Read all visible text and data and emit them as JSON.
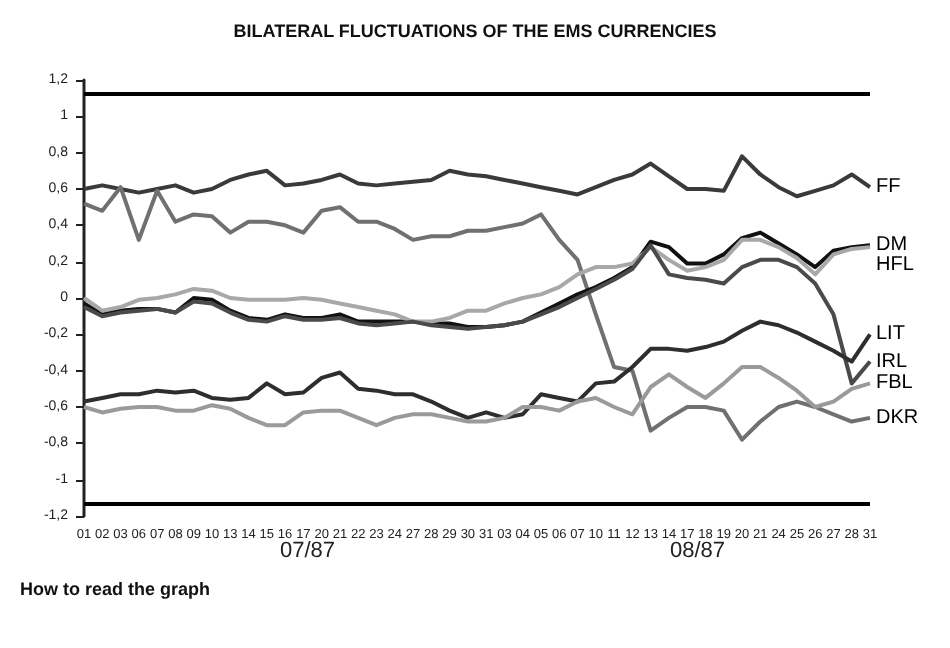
{
  "chart_data": {
    "type": "line",
    "title": "BILATERAL FLUCTUATIONS OF THE EMS CURRENCIES",
    "categories": [
      "01",
      "02",
      "03",
      "06",
      "07",
      "08",
      "09",
      "10",
      "13",
      "14",
      "15",
      "16",
      "17",
      "20",
      "21",
      "22",
      "23",
      "24",
      "27",
      "28",
      "29",
      "30",
      "31",
      "03",
      "04",
      "05",
      "06",
      "07",
      "10",
      "11",
      "12",
      "13",
      "14",
      "17",
      "18",
      "19",
      "20",
      "21",
      "24",
      "25",
      "26",
      "27",
      "28",
      "31"
    ],
    "series": [
      {
        "name": "FF",
        "color": "#3a3a3a",
        "values": [
          0.6,
          0.62,
          0.6,
          0.58,
          0.6,
          0.62,
          0.58,
          0.6,
          0.65,
          0.68,
          0.7,
          0.62,
          0.63,
          0.65,
          0.68,
          0.63,
          0.62,
          0.63,
          0.64,
          0.65,
          0.7,
          0.68,
          0.67,
          0.65,
          0.63,
          0.61,
          0.59,
          0.57,
          0.61,
          0.65,
          0.68,
          0.74,
          0.67,
          0.6,
          0.6,
          0.59,
          0.78,
          0.68,
          0.61,
          0.56,
          0.59,
          0.62,
          0.68,
          0.61
        ]
      },
      {
        "name": "DKR",
        "color": "#707070",
        "values": [
          0.52,
          0.48,
          0.61,
          0.32,
          0.59,
          0.42,
          0.46,
          0.45,
          0.36,
          0.42,
          0.42,
          0.4,
          0.36,
          0.48,
          0.5,
          0.42,
          0.42,
          0.38,
          0.32,
          0.34,
          0.34,
          0.37,
          0.37,
          0.39,
          0.41,
          0.46,
          0.32,
          0.21,
          -0.09,
          -0.38,
          -0.4,
          -0.73,
          -0.66,
          -0.6,
          -0.6,
          -0.62,
          -0.78,
          -0.68,
          -0.6,
          -0.57,
          -0.6,
          -0.64,
          -0.68,
          -0.66
        ]
      },
      {
        "name": "DM",
        "color": "#111111",
        "values": [
          -0.03,
          -0.09,
          -0.07,
          -0.06,
          -0.06,
          -0.08,
          0.0,
          -0.01,
          -0.07,
          -0.11,
          -0.12,
          -0.09,
          -0.11,
          -0.11,
          -0.09,
          -0.13,
          -0.13,
          -0.13,
          -0.13,
          -0.14,
          -0.14,
          -0.16,
          -0.16,
          -0.15,
          -0.13,
          -0.08,
          -0.03,
          0.02,
          0.06,
          0.11,
          0.17,
          0.31,
          0.28,
          0.19,
          0.19,
          0.24,
          0.33,
          0.36,
          0.3,
          0.24,
          0.17,
          0.26,
          0.28,
          0.29
        ]
      },
      {
        "name": "HFL",
        "color": "#a8a8a8",
        "values": [
          0.0,
          -0.07,
          -0.05,
          -0.01,
          0.0,
          0.02,
          0.05,
          0.04,
          0.0,
          -0.01,
          -0.01,
          -0.01,
          0.0,
          -0.01,
          -0.03,
          -0.05,
          -0.07,
          -0.09,
          -0.13,
          -0.13,
          -0.11,
          -0.07,
          -0.07,
          -0.03,
          0.0,
          0.02,
          0.06,
          0.13,
          0.17,
          0.17,
          0.19,
          0.28,
          0.21,
          0.15,
          0.17,
          0.21,
          0.32,
          0.32,
          0.28,
          0.22,
          0.13,
          0.24,
          0.27,
          0.28
        ]
      },
      {
        "name": "IRL",
        "color": "#4a4a4a",
        "values": [
          -0.05,
          -0.1,
          -0.08,
          -0.07,
          -0.06,
          -0.08,
          -0.02,
          -0.03,
          -0.08,
          -0.12,
          -0.13,
          -0.1,
          -0.12,
          -0.12,
          -0.11,
          -0.14,
          -0.15,
          -0.14,
          -0.13,
          -0.15,
          -0.16,
          -0.17,
          -0.16,
          -0.15,
          -0.13,
          -0.09,
          -0.05,
          0.0,
          0.05,
          0.1,
          0.16,
          0.29,
          0.13,
          0.11,
          0.1,
          0.08,
          0.17,
          0.21,
          0.21,
          0.17,
          0.08,
          -0.09,
          -0.47,
          -0.35
        ]
      },
      {
        "name": "LIT",
        "color": "#2e2e2e",
        "values": [
          -0.57,
          -0.55,
          -0.53,
          -0.53,
          -0.51,
          -0.52,
          -0.51,
          -0.55,
          -0.56,
          -0.55,
          -0.47,
          -0.53,
          -0.52,
          -0.44,
          -0.41,
          -0.5,
          -0.51,
          -0.53,
          -0.53,
          -0.57,
          -0.62,
          -0.66,
          -0.63,
          -0.66,
          -0.64,
          -0.53,
          -0.55,
          -0.57,
          -0.47,
          -0.46,
          -0.38,
          -0.28,
          -0.28,
          -0.29,
          -0.27,
          -0.24,
          -0.18,
          -0.13,
          -0.15,
          -0.19,
          -0.24,
          -0.29,
          -0.35,
          -0.2
        ]
      },
      {
        "name": "FBL",
        "color": "#9a9a9a",
        "values": [
          -0.6,
          -0.63,
          -0.61,
          -0.6,
          -0.6,
          -0.62,
          -0.62,
          -0.59,
          -0.61,
          -0.66,
          -0.7,
          -0.7,
          -0.63,
          -0.62,
          -0.62,
          -0.66,
          -0.7,
          -0.66,
          -0.64,
          -0.64,
          -0.66,
          -0.68,
          -0.68,
          -0.66,
          -0.6,
          -0.6,
          -0.62,
          -0.57,
          -0.55,
          -0.6,
          -0.64,
          -0.49,
          -0.42,
          -0.49,
          -0.55,
          -0.47,
          -0.38,
          -0.38,
          -0.44,
          -0.51,
          -0.6,
          -0.57,
          -0.5,
          -0.47
        ]
      }
    ],
    "ylim": [
      -1.2,
      1.2
    ],
    "yticks": [
      {
        "value": -1.2,
        "label": "-1,2"
      },
      -1,
      {
        "value": -0.8,
        "label": "-0,8"
      },
      {
        "value": -0.6,
        "label": "-0,6"
      },
      {
        "value": -0.4,
        "label": "-0,4"
      },
      {
        "value": -0.2,
        "label": "-0,2"
      },
      0,
      {
        "value": 0.2,
        "label": "0,2"
      },
      {
        "value": 0.4,
        "label": "0,4"
      },
      {
        "value": 0.6,
        "label": "0,6"
      },
      {
        "value": 0.8,
        "label": "0,8"
      },
      1,
      {
        "value": 1.2,
        "label": "1,2"
      }
    ],
    "ref_lines": [
      {
        "axis": "y",
        "value": 1.13,
        "color": "#000000"
      },
      {
        "axis": "y",
        "value": -1.13,
        "color": "#000000"
      }
    ],
    "annotations": [
      "07/87",
      "08/87",
      "How to read the graph"
    ],
    "grid": false,
    "legend": false,
    "marker": "none"
  }
}
